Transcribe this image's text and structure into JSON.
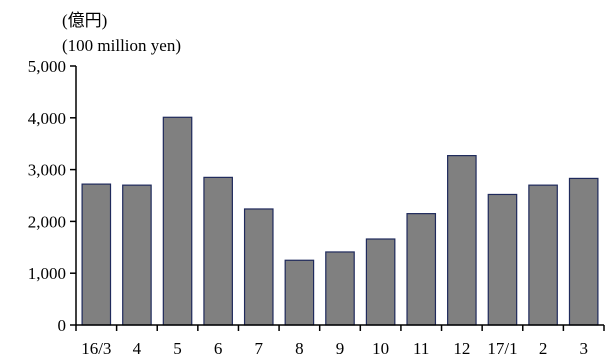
{
  "chart_data": {
    "type": "bar",
    "unit_label_jp": "(億円)",
    "unit_label_en": "(100 million yen)",
    "categories": [
      "16/3",
      "4",
      "5",
      "6",
      "7",
      "8",
      "9",
      "10",
      "11",
      "12",
      "17/1",
      "2",
      "3"
    ],
    "values": [
      2720,
      2700,
      4010,
      2850,
      2240,
      1250,
      1410,
      1660,
      2150,
      3270,
      2520,
      2700,
      2830
    ],
    "ylim": [
      0,
      5000
    ],
    "yticks": [
      0,
      1000,
      2000,
      3000,
      4000,
      5000
    ],
    "ytick_labels": [
      "0",
      "1,000",
      "2,000",
      "3,000",
      "4,000",
      "5,000"
    ],
    "grid": false,
    "bar_fill": "#808080",
    "bar_edge": "#1f2a5c"
  }
}
